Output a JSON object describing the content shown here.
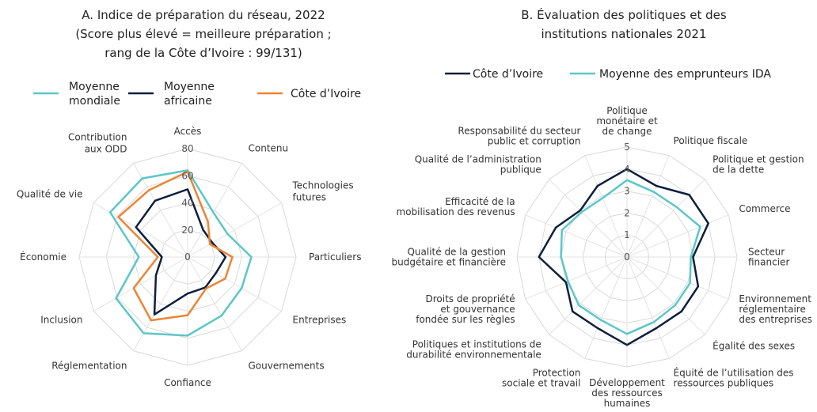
{
  "chart_data": [
    {
      "type": "radar",
      "title": [
        "A. Indice de préparation du réseau, 2022",
        "(Score plus élevé = meilleure préparation ;",
        "rang de la Côte d’Ivoire : 99/131)"
      ],
      "categories": [
        [
          "Accès"
        ],
        [
          "Contenu"
        ],
        [
          "Technologies",
          "futures"
        ],
        [
          "Particuliers"
        ],
        [
          "Entreprises"
        ],
        [
          "Gouvernements"
        ],
        [
          "Confiance"
        ],
        [
          "Réglementation"
        ],
        [
          "Inclusion"
        ],
        [
          "Économie"
        ],
        [
          "Qualité de vie"
        ],
        [
          "Contribution",
          "aux ODD"
        ]
      ],
      "series": [
        {
          "name": [
            "Moyenne",
            "mondiale"
          ],
          "color": "#5cc6c8",
          "values": [
            64,
            38,
            34,
            47,
            46,
            50,
            58,
            65,
            61,
            36,
            66,
            67
          ]
        },
        {
          "name": [
            "Moyenne",
            "africaine"
          ],
          "color": "#0e1f3d",
          "values": [
            50,
            23,
            21,
            28,
            24,
            26,
            27,
            49,
            27,
            19,
            44,
            48
          ]
        },
        {
          "name": [
            "Côte d’Ivoire"
          ],
          "color": "#ec8535",
          "values": [
            63,
            30,
            19,
            33,
            32,
            27,
            43,
            54,
            46,
            22,
            59,
            57
          ]
        }
      ],
      "ylim": [
        0,
        80
      ],
      "yticks": [
        0,
        20,
        40,
        60,
        80
      ],
      "grid": true
    },
    {
      "type": "radar",
      "title": [
        "B. Évaluation des politiques et des",
        "institutions nationales 2021"
      ],
      "categories": [
        [
          "Politique",
          "monétaire et",
          "de change"
        ],
        [
          "Politique fiscale"
        ],
        [
          "Politique et gestion",
          "de la dette"
        ],
        [
          "Commerce"
        ],
        [
          "Secteur",
          "financier"
        ],
        [
          "Environnement",
          "réglementaire",
          "des entreprises"
        ],
        [
          "Égalité des sexes"
        ],
        [
          "Équité de l’utilisation des",
          "ressources publiques"
        ],
        [
          "Développement",
          "des ressources",
          "humaines"
        ],
        [
          "Protection",
          "sociale et travail"
        ],
        [
          "Politiques et institutions de",
          "durabilité environnementale"
        ],
        [
          "Droits de propriété",
          "et gouvernance",
          "fondée sur les règles"
        ],
        [
          "Qualité de la gestion",
          "budgétaire et financière"
        ],
        [
          "Efficacité de la",
          "mobilisation des revenus"
        ],
        [
          "Qualité de l’administration",
          "publique"
        ],
        [
          "Responsabilité du secteur",
          "public et corruption"
        ]
      ],
      "series": [
        {
          "name": [
            "Côte d’Ivoire"
          ],
          "color": "#0e1f3d",
          "values": [
            4.0,
            3.5,
            4.0,
            4.0,
            3.0,
            3.5,
            3.5,
            3.5,
            4.0,
            3.5,
            3.5,
            3.0,
            4.0,
            3.5,
            3.0,
            3.5
          ]
        },
        {
          "name": [
            "Moyenne des emprunteurs IDA"
          ],
          "color": "#5cc6c8",
          "values": [
            3.5,
            3.2,
            3.2,
            3.6,
            2.9,
            3.1,
            3.1,
            3.2,
            3.5,
            3.1,
            3.1,
            2.9,
            3.0,
            3.2,
            2.9,
            2.9
          ]
        }
      ],
      "ylim": [
        0,
        5
      ],
      "yticks": [
        0,
        1,
        2,
        3,
        4,
        5
      ],
      "grid": true
    }
  ]
}
